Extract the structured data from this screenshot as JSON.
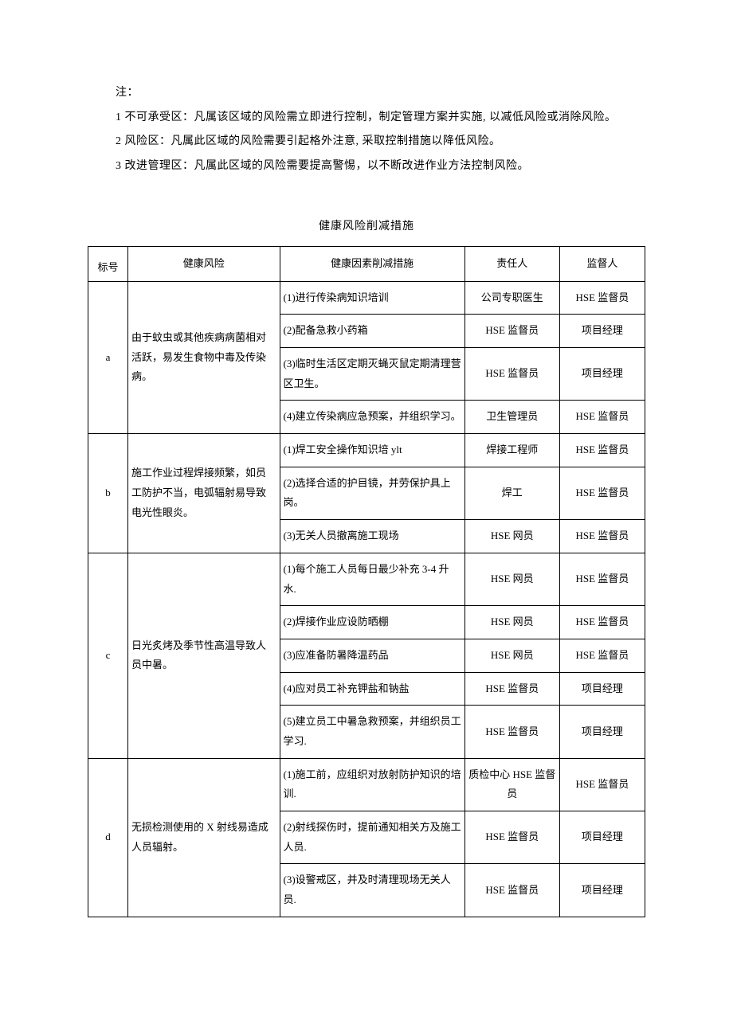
{
  "notes": {
    "label": "注：",
    "item1": "1 不可承受区：凡属该区域的风险需立即进行控制，制定管理方案并实施, 以减低风险或消除风险。",
    "item2": "2 风险区：凡属此区域的风险需要引起格外注意, 采取控制措施以降低风险。",
    "item3": "3 改进管理区：凡属此区域的风险需要提高警惕，以不断改进作业方法控制风险。"
  },
  "table": {
    "title": "健康风险削减措施",
    "headers": {
      "id": "标号",
      "risk": "健康风险",
      "measure": "健康因素削减措施",
      "responsible": "责任人",
      "supervisor": "监督人"
    },
    "groups": [
      {
        "id": "a",
        "risk": "由于蚊虫或其他疾病病菌相对活跃，易发生食物中毒及传染病。",
        "rows": [
          {
            "measure": "(1)进行传染病知识培训",
            "responsible": "公司专职医生",
            "supervisor": "HSE 监督员"
          },
          {
            "measure": "(2)配备急救小药箱",
            "responsible": "HSE 监督员",
            "supervisor": "项目经理"
          },
          {
            "measure": "(3)临时生活区定期灭蝇灭鼠定期清理营区卫生。",
            "responsible": "HSE 监督员",
            "supervisor": "项目经理"
          },
          {
            "measure": "(4)建立传染病应急预案，并组织学习。",
            "responsible": "卫生管理员",
            "supervisor": "HSE 监督员"
          }
        ]
      },
      {
        "id": "b",
        "risk": "施工作业过程焊接频繁，如员工防护不当，电弧辐射易导致电光性眼炎。",
        "rows": [
          {
            "measure": "(1)焊工安全操作知识培 ylt",
            "responsible": "焊接工程师",
            "supervisor": "HSE 监督员"
          },
          {
            "measure": "(2)选择合适的护目镜，并劳保护具上岗。",
            "responsible": "焊工",
            "supervisor": "HSE 监督员"
          },
          {
            "measure": "(3)无关人员撤离施工现场",
            "responsible": "HSE 网员",
            "supervisor": "HSE 监督员"
          }
        ]
      },
      {
        "id": "c",
        "risk": "日光炙烤及季节性高温导致人员中暑。",
        "rows": [
          {
            "measure": "(1)每个施工人员每日最少补充 3-4 升水.",
            "responsible": "HSE 网员",
            "supervisor": "HSE 监督员"
          },
          {
            "measure": "(2)焊接作业应设防晒棚",
            "responsible": "HSE 网员",
            "supervisor": "HSE 监督员"
          },
          {
            "measure": "(3)应准备防暑降温药品",
            "responsible": "HSE 网员",
            "supervisor": "HSE 监督员"
          },
          {
            "measure": "(4)应对员工补充钾盐和钠盐",
            "responsible": "HSE 监督员",
            "supervisor": "项目经理"
          },
          {
            "measure": "(5)建立员工中暑急救预案，并组织员工学习.",
            "responsible": "HSE 监督员",
            "supervisor": "项目经理"
          }
        ]
      },
      {
        "id": "d",
        "risk": "无损检测使用的 X 射线易造成人员辐射。",
        "rows": [
          {
            "measure": "(1)施工前，应组织对放射防护知识的培训.",
            "responsible": "质检中心 HSE 监督员",
            "supervisor": "HSE 监督员"
          },
          {
            "measure": "(2)射线探伤时，提前通知相关方及施工人员.",
            "responsible": "HSE 监督员",
            "supervisor": "项目经理"
          },
          {
            "measure": "(3)设警戒区，并及时清理现场无关人员.",
            "responsible": "HSE 监督员",
            "supervisor": "项目经理"
          }
        ]
      }
    ]
  }
}
